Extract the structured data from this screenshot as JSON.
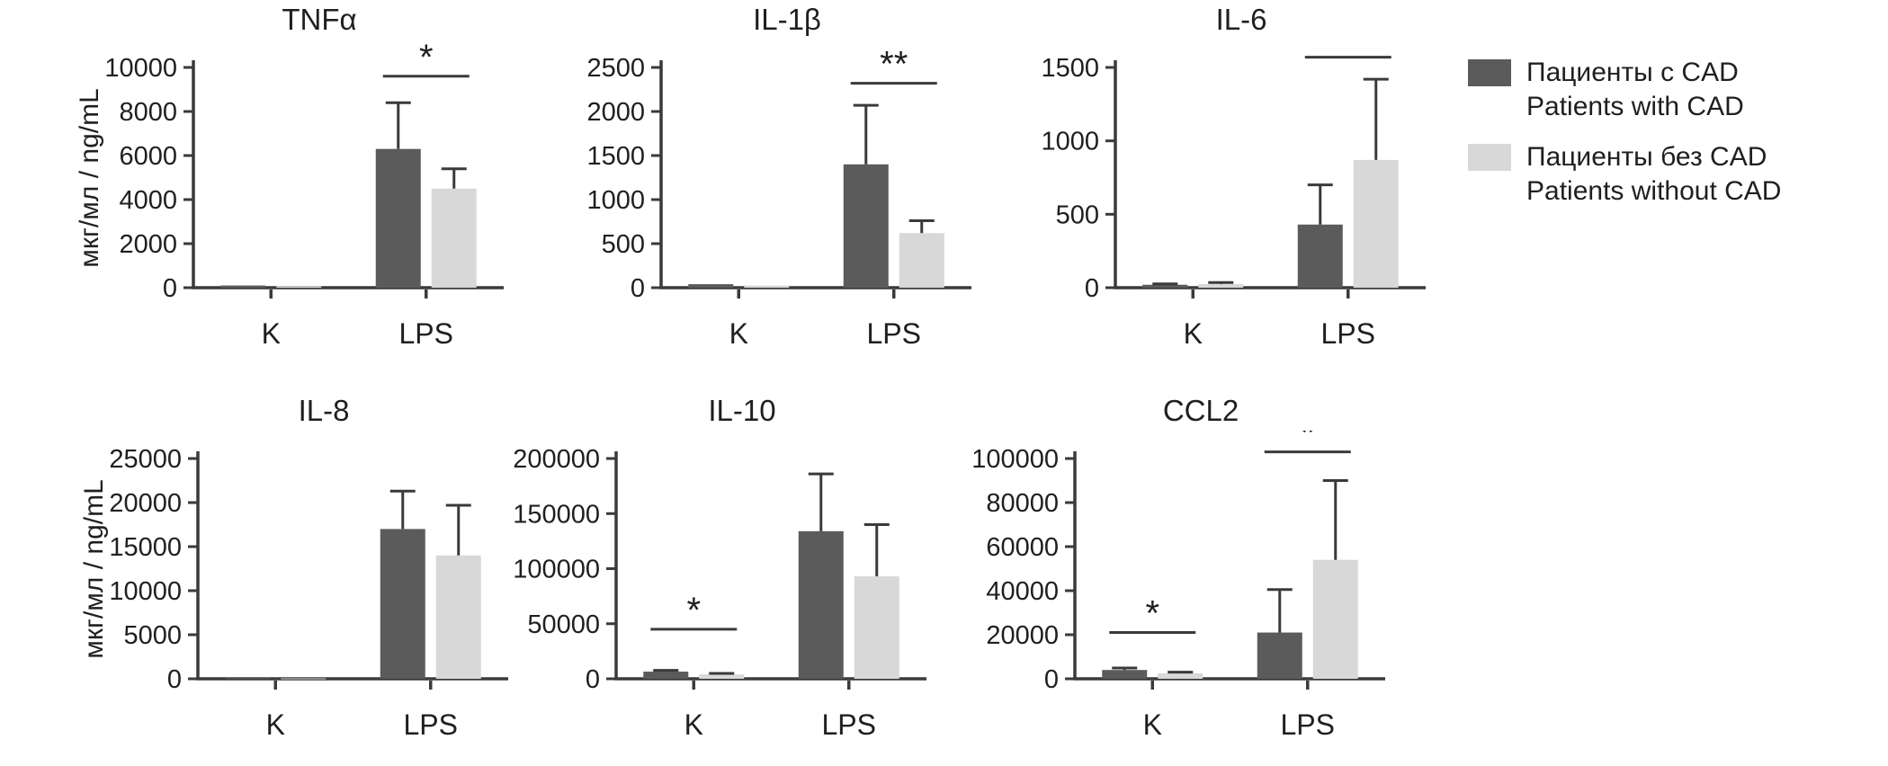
{
  "figure": {
    "background": "#ffffff",
    "y_axis_unit_label": "мкг/мл / ng/mL",
    "axis_color": "#3a3a3a",
    "text_color": "#1f1f1f"
  },
  "legend": {
    "items": [
      {
        "label_ru": "Пациенты с CAD",
        "label_en": "Patients with CAD",
        "color": "#5b5b5b"
      },
      {
        "label_ru": "Пациенты без CAD",
        "label_en": "Patients without CAD",
        "color": "#d8d8d8"
      }
    ]
  },
  "chart_data": [
    {
      "type": "bar",
      "title": "TNFα",
      "ylabel": "мкг/мл / ng/mL",
      "ylim": [
        0,
        10000
      ],
      "yticks": [
        0,
        2000,
        4000,
        6000,
        8000,
        10000
      ],
      "categories": [
        "K",
        "LPS"
      ],
      "series": [
        {
          "name": "Пациенты с CAD / Patients with CAD",
          "color": "#5b5b5b",
          "values": [
            100,
            6300
          ],
          "errors_plus": [
            0,
            2100
          ]
        },
        {
          "name": "Пациенты без CAD / Patients without CAD",
          "color": "#d8d8d8",
          "values": [
            60,
            4500
          ],
          "errors_plus": [
            0,
            900
          ]
        }
      ],
      "significance": [
        {
          "category": "LPS",
          "label": "*",
          "line_y": 9600
        }
      ]
    },
    {
      "type": "bar",
      "title": "IL-1β",
      "ylabel": "",
      "ylim": [
        0,
        2500
      ],
      "yticks": [
        0,
        500,
        1000,
        1500,
        2000,
        2500
      ],
      "categories": [
        "K",
        "LPS"
      ],
      "series": [
        {
          "name": "Пациенты с CAD / Patients with CAD",
          "color": "#5b5b5b",
          "values": [
            40,
            1400
          ],
          "errors_plus": [
            0,
            670
          ]
        },
        {
          "name": "Пациенты без CAD / Patients without CAD",
          "color": "#d8d8d8",
          "values": [
            25,
            620
          ],
          "errors_plus": [
            0,
            140
          ]
        }
      ],
      "significance": [
        {
          "category": "LPS",
          "label": "**",
          "line_y": 2320
        }
      ]
    },
    {
      "type": "bar",
      "title": "IL-6",
      "ylabel": "",
      "ylim": [
        0,
        1500
      ],
      "yticks": [
        0,
        500,
        1000,
        1500
      ],
      "categories": [
        "K",
        "LPS"
      ],
      "series": [
        {
          "name": "Пациенты с CAD / Patients with CAD",
          "color": "#5b5b5b",
          "values": [
            20,
            430
          ],
          "errors_plus": [
            6,
            270
          ]
        },
        {
          "name": "Пациенты без CAD / Patients without CAD",
          "color": "#d8d8d8",
          "values": [
            25,
            870
          ],
          "errors_plus": [
            10,
            550
          ]
        }
      ],
      "significance": [
        {
          "category": "LPS",
          "label": "*",
          "line_y": 1570
        }
      ]
    },
    {
      "type": "bar",
      "title": "IL-8",
      "ylabel": "мкг/мл / ng/mL",
      "ylim": [
        0,
        25000
      ],
      "yticks": [
        0,
        5000,
        10000,
        15000,
        20000,
        25000
      ],
      "categories": [
        "K",
        "LPS"
      ],
      "series": [
        {
          "name": "Пациенты с CAD / Patients with CAD",
          "color": "#5b5b5b",
          "values": [
            80,
            17000
          ],
          "errors_plus": [
            0,
            4300
          ]
        },
        {
          "name": "Пациенты без CAD / Patients without CAD",
          "color": "#d8d8d8",
          "values": [
            50,
            14000
          ],
          "errors_plus": [
            0,
            5700
          ]
        }
      ],
      "significance": []
    },
    {
      "type": "bar",
      "title": "IL-10",
      "ylabel": "",
      "ylim": [
        0,
        200000
      ],
      "yticks": [
        0,
        50000,
        100000,
        150000,
        200000
      ],
      "categories": [
        "K",
        "LPS"
      ],
      "series": [
        {
          "name": "Пациенты с CAD / Patients with CAD",
          "color": "#5b5b5b",
          "values": [
            6500,
            134000
          ],
          "errors_plus": [
            1200,
            52000
          ]
        },
        {
          "name": "Пациенты без CAD / Patients without CAD",
          "color": "#d8d8d8",
          "values": [
            4000,
            93000
          ],
          "errors_plus": [
            900,
            47000
          ]
        }
      ],
      "significance": [
        {
          "category": "K",
          "label": "*",
          "line_y": 45000
        }
      ]
    },
    {
      "type": "bar",
      "title": "CCL2",
      "ylabel": "",
      "ylim": [
        0,
        100000
      ],
      "yticks": [
        0,
        20000,
        40000,
        60000,
        80000,
        100000
      ],
      "categories": [
        "K",
        "LPS"
      ],
      "series": [
        {
          "name": "Пациенты с CAD / Patients with CAD",
          "color": "#5b5b5b",
          "values": [
            4000,
            21000
          ],
          "errors_plus": [
            900,
            19500
          ]
        },
        {
          "name": "Пациенты без CAD / Patients without CAD",
          "color": "#d8d8d8",
          "values": [
            2500,
            54000
          ],
          "errors_plus": [
            500,
            36000
          ]
        }
      ],
      "significance": [
        {
          "category": "K",
          "label": "*",
          "line_y": 21000
        },
        {
          "category": "LPS",
          "label": "*",
          "line_y": 103000
        }
      ]
    }
  ]
}
